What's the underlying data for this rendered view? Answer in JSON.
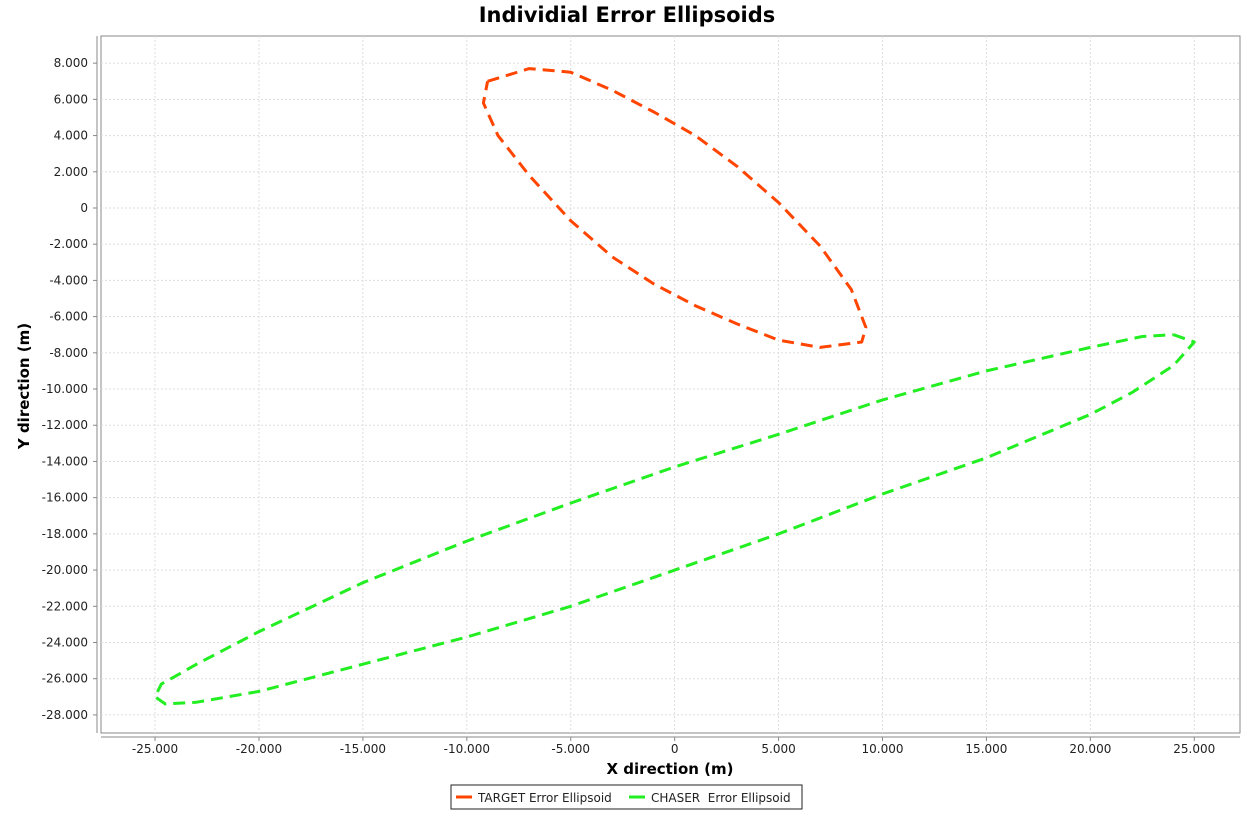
{
  "chart_data": {
    "type": "scatter",
    "title": "Individial Error Ellipsoids",
    "xlabel": "X direction (m)",
    "ylabel": "Y direction (m)",
    "xlim": [
      -27600,
      27200
    ],
    "ylim": [
      -29000,
      9500
    ],
    "x_ticks": [
      -25000,
      -20000,
      -15000,
      -10000,
      -5000,
      0,
      5000,
      10000,
      15000,
      20000,
      25000
    ],
    "x_tick_labels": [
      "-25.000",
      "-20.000",
      "-15.000",
      "-10.000",
      "-5.000",
      "0",
      "5.000",
      "10.000",
      "15.000",
      "20.000",
      "25.000"
    ],
    "y_ticks": [
      8000,
      6000,
      4000,
      2000,
      0,
      -2000,
      -4000,
      -6000,
      -8000,
      -10000,
      -12000,
      -14000,
      -16000,
      -18000,
      -20000,
      -22000,
      -24000,
      -26000,
      -28000
    ],
    "y_tick_labels": [
      "8.000",
      "6.000",
      "4.000",
      "2.000",
      "0",
      "-2.000",
      "-4.000",
      "-6.000",
      "-8.000",
      "-10.000",
      "-12.000",
      "-14.000",
      "-16.000",
      "-18.000",
      "-20.000",
      "-22.000",
      "-24.000",
      "-26.000",
      "-28.000"
    ],
    "grid": true,
    "legend_position": "bottom-center",
    "series": [
      {
        "name": "TARGET Error Ellipsoid",
        "color": "#ff4500",
        "style": "dashed",
        "points": [
          [
            -9000,
            7000
          ],
          [
            -7000,
            7700
          ],
          [
            -5000,
            7500
          ],
          [
            -3000,
            6500
          ],
          [
            -1000,
            5300
          ],
          [
            1000,
            4000
          ],
          [
            3000,
            2300
          ],
          [
            5000,
            300
          ],
          [
            7000,
            -2100
          ],
          [
            8500,
            -4500
          ],
          [
            9200,
            -6600
          ],
          [
            9000,
            -7400
          ],
          [
            7000,
            -7700
          ],
          [
            5000,
            -7300
          ],
          [
            3000,
            -6400
          ],
          [
            1000,
            -5400
          ],
          [
            -1000,
            -4200
          ],
          [
            -3000,
            -2700
          ],
          [
            -5000,
            -700
          ],
          [
            -7000,
            1800
          ],
          [
            -8500,
            4000
          ],
          [
            -9200,
            5800
          ],
          [
            -9000,
            7000
          ]
        ]
      },
      {
        "name": "CHASER  Error Ellipsoid",
        "color": "#22ee22",
        "style": "dashed",
        "points": [
          [
            24000,
            -7000
          ],
          [
            25000,
            -7400
          ],
          [
            24000,
            -8700
          ],
          [
            22000,
            -10200
          ],
          [
            20000,
            -11400
          ],
          [
            15000,
            -13800
          ],
          [
            10000,
            -15800
          ],
          [
            5000,
            -18000
          ],
          [
            0,
            -20000
          ],
          [
            -5000,
            -22000
          ],
          [
            -10000,
            -23700
          ],
          [
            -15000,
            -25200
          ],
          [
            -20000,
            -26700
          ],
          [
            -23000,
            -27300
          ],
          [
            -24500,
            -27400
          ],
          [
            -25000,
            -27000
          ],
          [
            -24700,
            -26300
          ],
          [
            -23000,
            -25200
          ],
          [
            -20000,
            -23400
          ],
          [
            -15000,
            -20700
          ],
          [
            -10000,
            -18400
          ],
          [
            -5000,
            -16300
          ],
          [
            0,
            -14300
          ],
          [
            5000,
            -12500
          ],
          [
            10000,
            -10600
          ],
          [
            15000,
            -9000
          ],
          [
            20000,
            -7700
          ],
          [
            22500,
            -7100
          ],
          [
            24000,
            -7000
          ]
        ]
      }
    ]
  }
}
